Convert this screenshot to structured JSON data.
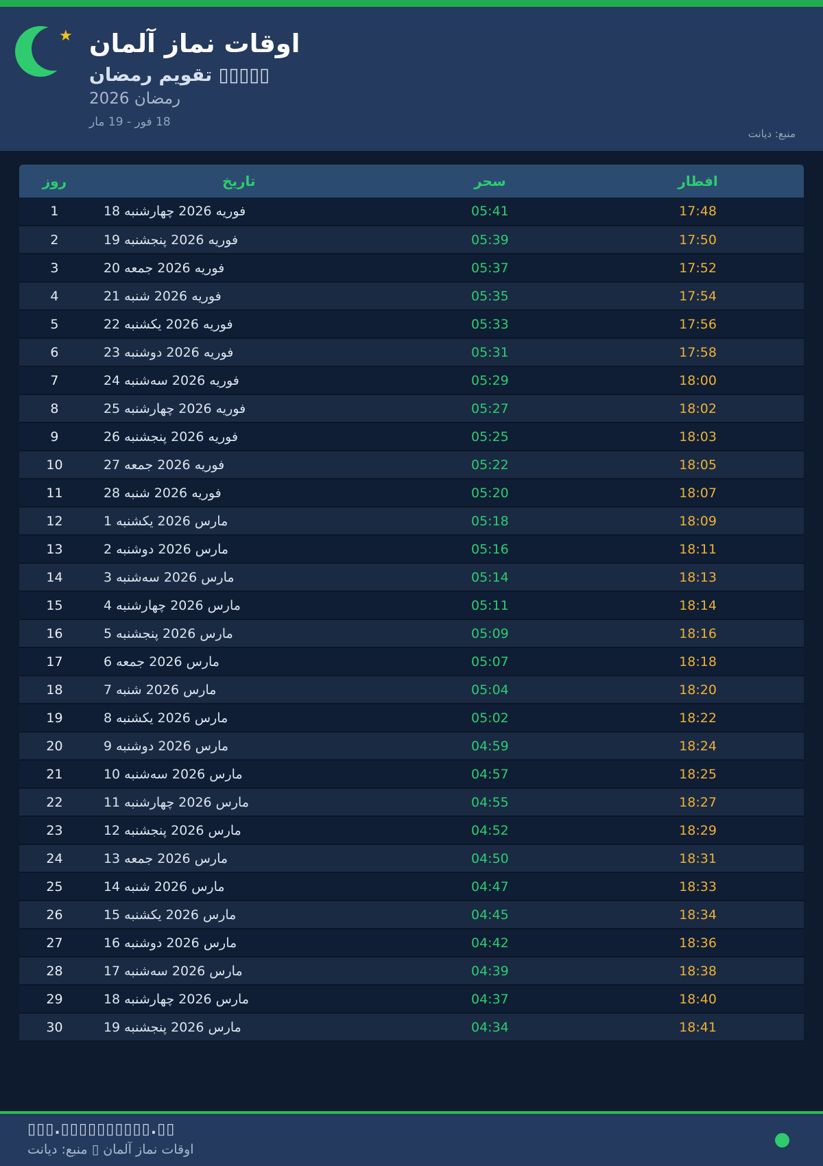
{
  "colors": {
    "accent_green": "#2ecc71",
    "accent_gold": "#eeb137",
    "bar_green": "#23ab51",
    "panel_navy": "#243a5e",
    "page_dark": "#0e1a2e"
  },
  "header": {
    "title": "اوقات نماز آلمان",
    "subtitle": "تقویم رمضان ▯▯▯▯▯",
    "ramadan_year": "رمضان 2026",
    "date_range": "18 فور - 19 مار",
    "source": "منبع: دیانت",
    "crescent_icon": "crescent-moon",
    "star_icon": "star",
    "star_glyph": "★"
  },
  "table": {
    "columns": [
      "روز",
      "تاریخ",
      "سحر",
      "افطار"
    ],
    "rows": [
      {
        "day": "1",
        "date": "18 فوریه 2026 چهارشنبه",
        "sehri": "05:41",
        "iftar": "17:48"
      },
      {
        "day": "2",
        "date": "19 فوریه 2026 پنجشنبه",
        "sehri": "05:39",
        "iftar": "17:50"
      },
      {
        "day": "3",
        "date": "20 فوریه 2026 جمعه",
        "sehri": "05:37",
        "iftar": "17:52"
      },
      {
        "day": "4",
        "date": "21 فوریه 2026 شنبه",
        "sehri": "05:35",
        "iftar": "17:54"
      },
      {
        "day": "5",
        "date": "22 فوریه 2026 یکشنبه",
        "sehri": "05:33",
        "iftar": "17:56"
      },
      {
        "day": "6",
        "date": "23 فوریه 2026 دوشنبه",
        "sehri": "05:31",
        "iftar": "17:58"
      },
      {
        "day": "7",
        "date": "24 فوریه 2026 سه‌شنبه",
        "sehri": "05:29",
        "iftar": "18:00"
      },
      {
        "day": "8",
        "date": "25 فوریه 2026 چهارشنبه",
        "sehri": "05:27",
        "iftar": "18:02"
      },
      {
        "day": "9",
        "date": "26 فوریه 2026 پنجشنبه",
        "sehri": "05:25",
        "iftar": "18:03"
      },
      {
        "day": "10",
        "date": "27 فوریه 2026 جمعه",
        "sehri": "05:22",
        "iftar": "18:05"
      },
      {
        "day": "11",
        "date": "28 فوریه 2026 شنبه",
        "sehri": "05:20",
        "iftar": "18:07"
      },
      {
        "day": "12",
        "date": "1 مارس 2026 یکشنبه",
        "sehri": "05:18",
        "iftar": "18:09"
      },
      {
        "day": "13",
        "date": "2 مارس 2026 دوشنبه",
        "sehri": "05:16",
        "iftar": "18:11"
      },
      {
        "day": "14",
        "date": "3 مارس 2026 سه‌شنبه",
        "sehri": "05:14",
        "iftar": "18:13"
      },
      {
        "day": "15",
        "date": "4 مارس 2026 چهارشنبه",
        "sehri": "05:11",
        "iftar": "18:14"
      },
      {
        "day": "16",
        "date": "5 مارس 2026 پنجشنبه",
        "sehri": "05:09",
        "iftar": "18:16"
      },
      {
        "day": "17",
        "date": "6 مارس 2026 جمعه",
        "sehri": "05:07",
        "iftar": "18:18"
      },
      {
        "day": "18",
        "date": "7 مارس 2026 شنبه",
        "sehri": "05:04",
        "iftar": "18:20"
      },
      {
        "day": "19",
        "date": "8 مارس 2026 یکشنبه",
        "sehri": "05:02",
        "iftar": "18:22"
      },
      {
        "day": "20",
        "date": "9 مارس 2026 دوشنبه",
        "sehri": "04:59",
        "iftar": "18:24"
      },
      {
        "day": "21",
        "date": "10 مارس 2026 سه‌شنبه",
        "sehri": "04:57",
        "iftar": "18:25"
      },
      {
        "day": "22",
        "date": "11 مارس 2026 چهارشنبه",
        "sehri": "04:55",
        "iftar": "18:27"
      },
      {
        "day": "23",
        "date": "12 مارس 2026 پنجشنبه",
        "sehri": "04:52",
        "iftar": "18:29"
      },
      {
        "day": "24",
        "date": "13 مارس 2026 جمعه",
        "sehri": "04:50",
        "iftar": "18:31"
      },
      {
        "day": "25",
        "date": "14 مارس 2026 شنبه",
        "sehri": "04:47",
        "iftar": "18:33"
      },
      {
        "day": "26",
        "date": "15 مارس 2026 یکشنبه",
        "sehri": "04:45",
        "iftar": "18:34"
      },
      {
        "day": "27",
        "date": "16 مارس 2026 دوشنبه",
        "sehri": "04:42",
        "iftar": "18:36"
      },
      {
        "day": "28",
        "date": "17 مارس 2026 سه‌شنبه",
        "sehri": "04:39",
        "iftar": "18:38"
      },
      {
        "day": "29",
        "date": "18 مارس 2026 چهارشنبه",
        "sehri": "04:37",
        "iftar": "18:40"
      },
      {
        "day": "30",
        "date": "19 مارس 2026 پنجشنبه",
        "sehri": "04:34",
        "iftar": "18:41"
      }
    ]
  },
  "footer": {
    "url": "▯▯▯.▯▯▯▯▯▯▯▯▯▯.▯▯",
    "credit": "اوقات نماز آلمان ▯ منبع: دیانت",
    "dot_color": "#2fcb6e"
  }
}
